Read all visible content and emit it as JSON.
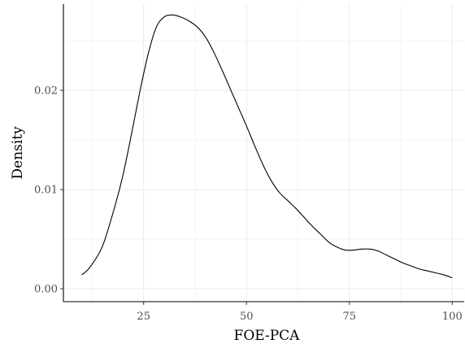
{
  "chart_data": {
    "type": "line",
    "title": "",
    "xlabel": "FOE-PCA",
    "ylabel": "Density",
    "xlim": [
      5.5,
      102.9
    ],
    "ylim": [
      -0.0013,
      0.0287
    ],
    "x_ticks": [
      25,
      50,
      75,
      100
    ],
    "x_tick_labels": [
      "25",
      "50",
      "75",
      "100"
    ],
    "y_ticks": [
      0.0,
      0.01,
      0.02
    ],
    "y_tick_labels": [
      "0.00",
      "0.01",
      "0.02"
    ],
    "grid": true,
    "legend": "none",
    "line_color": "#000000",
    "grid_color": "#ebebeb",
    "series": [
      {
        "x": [
          10,
          12,
          15,
          18,
          20,
          22,
          24,
          26,
          28,
          30,
          32,
          34,
          36,
          38,
          40,
          42,
          44,
          46,
          48,
          50,
          52,
          54,
          56,
          58,
          60,
          62,
          64,
          66,
          68,
          70,
          72,
          74,
          76,
          78,
          80,
          82,
          84,
          86,
          88,
          90,
          92,
          94,
          96,
          98,
          100
        ],
        "y": [
          0.0014,
          0.0022,
          0.0043,
          0.0083,
          0.0115,
          0.0155,
          0.0197,
          0.0235,
          0.0263,
          0.0274,
          0.0276,
          0.0274,
          0.027,
          0.0264,
          0.0254,
          0.0239,
          0.0221,
          0.0202,
          0.0183,
          0.0164,
          0.0144,
          0.0125,
          0.0109,
          0.0097,
          0.0089,
          0.0081,
          0.0072,
          0.0063,
          0.0055,
          0.0047,
          0.0042,
          0.0039,
          0.0039,
          0.004,
          0.004,
          0.0038,
          0.0034,
          0.003,
          0.0026,
          0.0023,
          0.002,
          0.0018,
          0.0016,
          0.0014,
          0.0011
        ]
      }
    ]
  }
}
